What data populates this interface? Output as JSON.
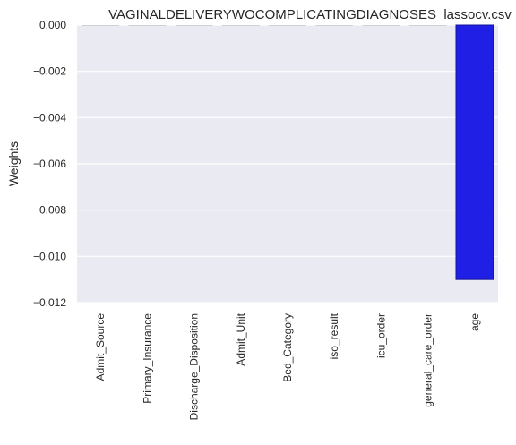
{
  "chart_data": {
    "type": "bar",
    "title": "VAGINALDELIVERYWOCOMPLICATINGDIAGNOSES_lassocv.csv",
    "xlabel": "",
    "ylabel": "Weights",
    "categories": [
      "Admit_Source",
      "Primary_Insurance",
      "Discharge_Disposition",
      "Admit_Unit",
      "Bed_Category",
      "iso_result",
      "icu_order",
      "general_care_order",
      "age"
    ],
    "values": [
      0,
      0,
      0,
      0,
      0,
      0,
      0,
      0,
      -0.011
    ],
    "ylim": [
      -0.012,
      0.0
    ],
    "yticks": [
      0.0,
      -0.002,
      -0.004,
      -0.006,
      -0.008,
      -0.01,
      -0.012
    ],
    "ytick_labels": [
      "0.000",
      "−0.002",
      "−0.004",
      "−0.006",
      "−0.008",
      "−0.010",
      "−0.012"
    ],
    "grid": true,
    "colors": {
      "plot_bg": "#eaeaf2",
      "grid": "#ffffff",
      "bar": "#1f1fe6",
      "bar_edge": "#14149a"
    }
  }
}
